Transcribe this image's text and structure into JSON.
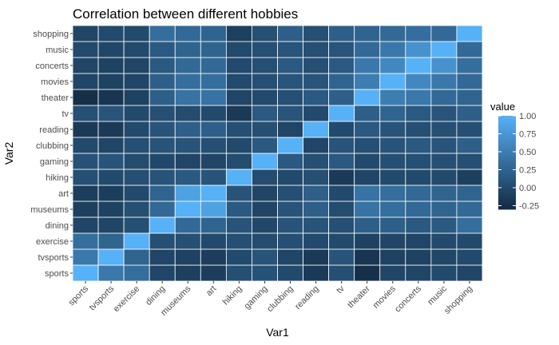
{
  "chart_data": {
    "type": "heatmap",
    "title": "Correlation between different hobbies",
    "xlabel": "Var1",
    "ylabel": "Var2",
    "x": [
      "sports",
      "tvsports",
      "exercise",
      "dining",
      "museums",
      "art",
      "hiking",
      "gaming",
      "clubbing",
      "reading",
      "tv",
      "theater",
      "movies",
      "concerts",
      "music",
      "shopping"
    ],
    "y": [
      "sports",
      "tvsports",
      "exercise",
      "dining",
      "museums",
      "art",
      "hiking",
      "gaming",
      "clubbing",
      "reading",
      "tv",
      "theater",
      "movies",
      "concerts",
      "music",
      "shopping"
    ],
    "values": [
      [
        1.0,
        0.45,
        0.35,
        -0.05,
        -0.1,
        -0.12,
        0.05,
        0.08,
        0.0,
        -0.15,
        0.05,
        -0.25,
        -0.05,
        -0.05,
        0.0,
        -0.05
      ],
      [
        0.45,
        1.0,
        0.25,
        -0.05,
        -0.08,
        -0.12,
        0.0,
        0.1,
        -0.05,
        -0.15,
        0.1,
        -0.2,
        -0.08,
        -0.08,
        -0.03,
        0.0
      ],
      [
        0.35,
        0.25,
        1.0,
        0.05,
        0.05,
        0.0,
        0.05,
        0.02,
        0.05,
        0.0,
        0.0,
        -0.08,
        -0.05,
        -0.05,
        0.0,
        0.0
      ],
      [
        -0.05,
        -0.05,
        0.05,
        1.0,
        0.3,
        0.25,
        0.1,
        -0.02,
        0.1,
        0.1,
        0.05,
        0.2,
        0.2,
        0.15,
        0.15,
        0.35
      ],
      [
        -0.1,
        -0.08,
        0.05,
        0.3,
        1.0,
        0.85,
        0.15,
        -0.05,
        0.1,
        0.2,
        0.02,
        0.4,
        0.35,
        0.3,
        0.25,
        0.3
      ],
      [
        -0.12,
        -0.12,
        0.0,
        0.25,
        0.85,
        1.0,
        0.1,
        -0.05,
        0.05,
        0.2,
        0.0,
        0.4,
        0.35,
        0.3,
        0.25,
        0.25
      ],
      [
        0.05,
        0.0,
        0.05,
        0.1,
        0.15,
        0.1,
        1.0,
        0.02,
        0.0,
        0.05,
        -0.15,
        -0.05,
        0.0,
        0.0,
        0.0,
        -0.1
      ],
      [
        0.08,
        0.1,
        0.02,
        -0.02,
        -0.05,
        -0.05,
        0.02,
        1.0,
        0.15,
        0.05,
        0.15,
        0.0,
        0.05,
        0.05,
        0.05,
        0.05
      ],
      [
        0.0,
        -0.05,
        0.05,
        0.1,
        0.1,
        0.05,
        0.0,
        0.15,
        1.0,
        -0.05,
        0.1,
        0.05,
        0.1,
        0.15,
        0.1,
        0.2
      ],
      [
        -0.15,
        -0.15,
        0.0,
        0.1,
        0.2,
        0.2,
        0.05,
        0.05,
        -0.05,
        1.0,
        0.0,
        0.15,
        0.1,
        0.05,
        0.05,
        0.05
      ],
      [
        0.05,
        0.1,
        0.0,
        0.05,
        0.02,
        0.0,
        -0.15,
        0.15,
        0.1,
        0.0,
        1.0,
        0.2,
        0.25,
        0.15,
        0.1,
        0.2
      ],
      [
        -0.25,
        -0.2,
        -0.08,
        0.2,
        0.4,
        0.4,
        -0.05,
        0.0,
        0.05,
        0.15,
        0.2,
        1.0,
        0.5,
        0.45,
        0.3,
        0.25
      ],
      [
        -0.05,
        -0.08,
        -0.05,
        0.2,
        0.35,
        0.35,
        0.0,
        0.05,
        0.1,
        0.1,
        0.25,
        0.5,
        1.0,
        0.6,
        0.45,
        0.3
      ],
      [
        -0.05,
        -0.08,
        -0.05,
        0.15,
        0.3,
        0.3,
        0.0,
        0.05,
        0.15,
        0.05,
        0.15,
        0.45,
        0.6,
        1.0,
        0.7,
        0.35
      ],
      [
        0.0,
        -0.03,
        0.0,
        0.15,
        0.25,
        0.25,
        0.0,
        0.05,
        0.1,
        0.05,
        0.1,
        0.3,
        0.45,
        0.7,
        1.0,
        0.3
      ],
      [
        -0.05,
        0.0,
        0.0,
        0.35,
        0.3,
        0.25,
        -0.1,
        0.05,
        0.2,
        0.05,
        0.2,
        0.25,
        0.3,
        0.35,
        0.3,
        1.0
      ]
    ],
    "legend": {
      "title": "value",
      "ticks": [
        "1.00",
        "0.75",
        "0.50",
        "0.25",
        "0.00",
        "-0.25"
      ],
      "tick_values": [
        1.0,
        0.75,
        0.5,
        0.25,
        0.0,
        -0.25
      ],
      "range": [
        -0.3,
        1.0
      ],
      "low_color": "#132B43",
      "high_color": "#56B1F7",
      "placement": "right"
    },
    "panel_background": "#ebebeb",
    "grid": false
  }
}
